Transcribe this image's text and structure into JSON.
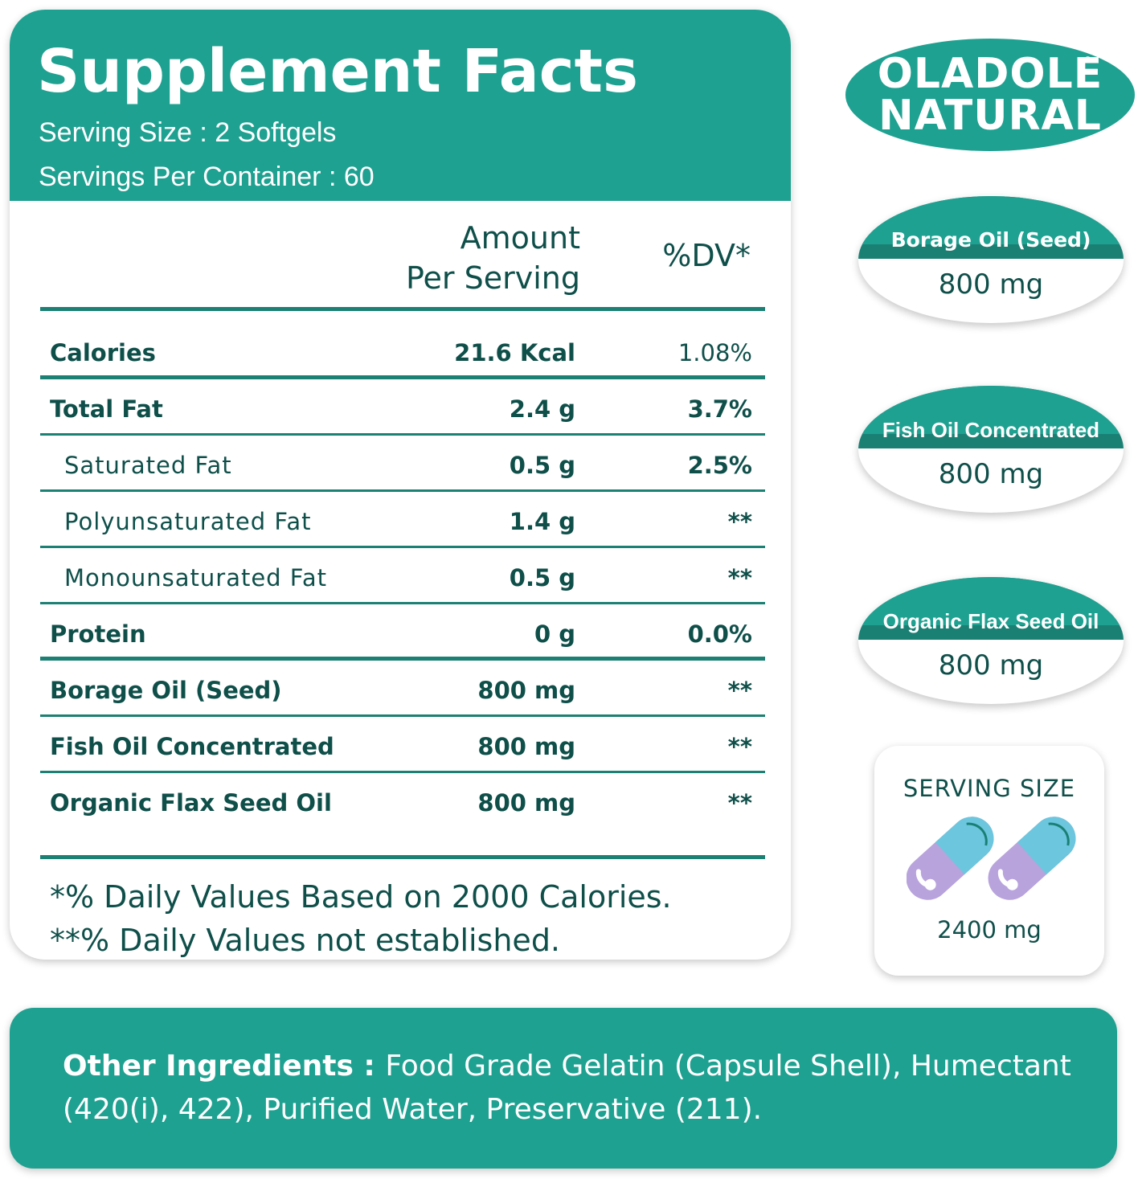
{
  "facts": {
    "title": "Supplement Facts",
    "serving_size": "Serving Size : 2 Softgels",
    "servings_per_container": "Servings Per Container : 60",
    "amount_header_line1": "Amount",
    "amount_header_line2": "Per Serving",
    "dv_header": "%DV*",
    "rows": [
      {
        "name": "Calories",
        "amount": "21.6 Kcal",
        "dv": "1.08%"
      },
      {
        "name": "Total Fat",
        "amount": "2.4 g",
        "dv": "3.7%"
      },
      {
        "name": "Saturated Fat",
        "amount": "0.5 g",
        "dv": "2.5%"
      },
      {
        "name": "Polyunsaturated Fat",
        "amount": "1.4 g",
        "dv": "**"
      },
      {
        "name": "Monounsaturated Fat",
        "amount": "0.5 g",
        "dv": "**"
      },
      {
        "name": "Protein",
        "amount": "0 g",
        "dv": "0.0%"
      },
      {
        "name": "Borage Oil (Seed)",
        "amount": "800 mg",
        "dv": "**"
      },
      {
        "name": "Fish Oil Concentrated",
        "amount": "800 mg",
        "dv": "**"
      },
      {
        "name": "Organic Flax Seed Oil",
        "amount": "800 mg",
        "dv": "**"
      }
    ],
    "footnote_1": "*% Daily Values Based on 2000 Calories.",
    "footnote_2": "**% Daily Values not established."
  },
  "logo": {
    "line1": "OLADOLE",
    "line2": "NATURAL",
    "reg": "®"
  },
  "badges": [
    {
      "label": "Borage Oil (Seed)",
      "value": "800 mg"
    },
    {
      "label": "Fish Oil Concentrated",
      "value": "800 mg"
    },
    {
      "label": "Organic Flax Seed Oil",
      "value": "800 mg"
    }
  ],
  "serving_card": {
    "title": "SERVING SIZE",
    "value": "2400 mg",
    "icon": "softgel-capsule-icon"
  },
  "ingredients": {
    "label": "Other Ingredients : ",
    "text": "Food Grade Gelatin (Capsule Shell), Humectant (420(i), 422), Purified Water, Preservative (211)."
  },
  "colors": {
    "primary_teal": "#1fa191",
    "dark_teal": "#1a8074",
    "text_dark": "#0f4f4a",
    "capsule_blue": "#6cc6de",
    "capsule_purple": "#b8a3dc"
  }
}
